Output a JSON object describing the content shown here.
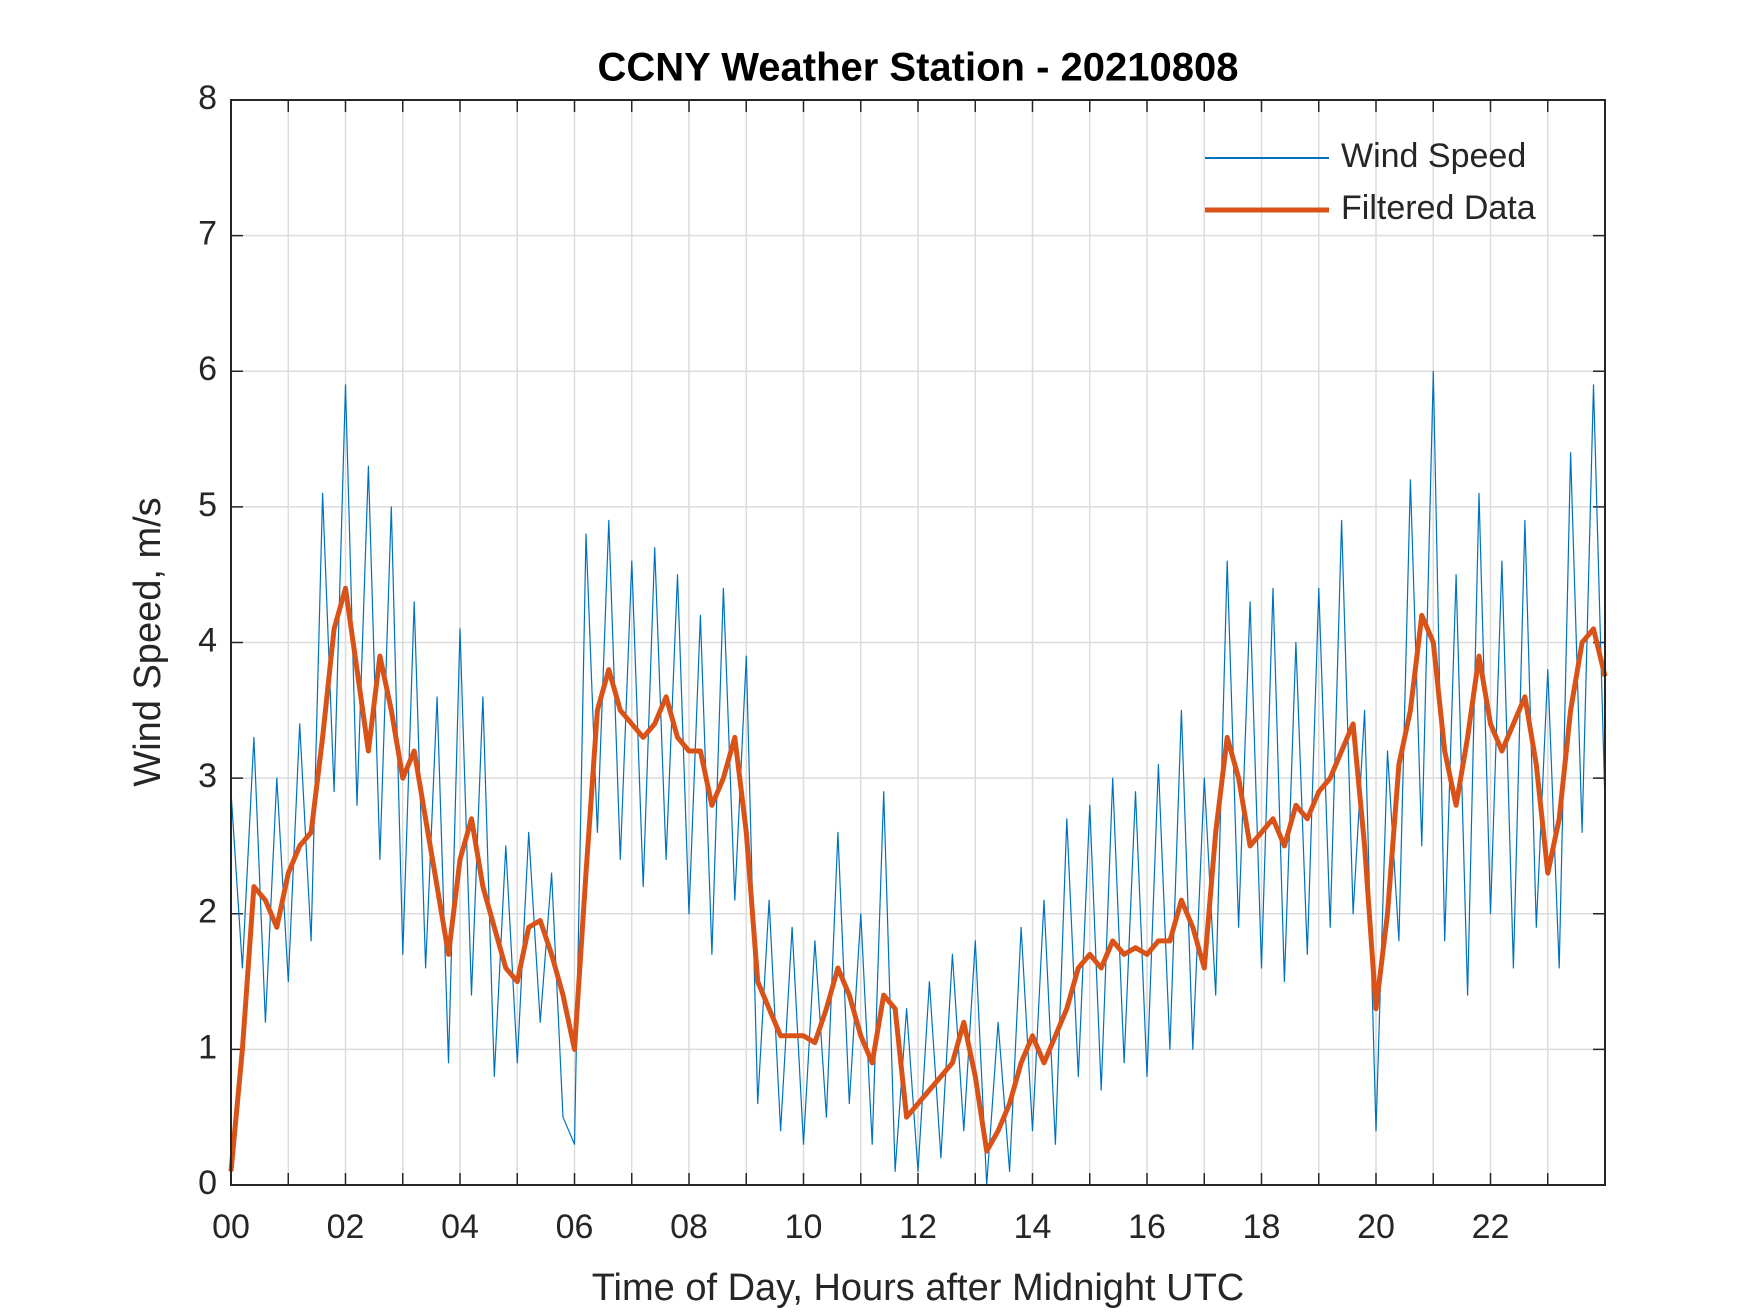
{
  "chart_data": {
    "type": "line",
    "title": "CCNY Weather Station - 20210808",
    "x_label": "Time of Day, Hours after Midnight UTC",
    "y_label": "Wind Speed, m/s",
    "xlim": [
      0,
      24
    ],
    "ylim": [
      0,
      8
    ],
    "xticks": [
      {
        "value": 0,
        "label": "00"
      },
      {
        "value": 2,
        "label": "02"
      },
      {
        "value": 4,
        "label": "04"
      },
      {
        "value": 6,
        "label": "06"
      },
      {
        "value": 8,
        "label": "08"
      },
      {
        "value": 10,
        "label": "10"
      },
      {
        "value": 12,
        "label": "12"
      },
      {
        "value": 14,
        "label": "14"
      },
      {
        "value": 16,
        "label": "16"
      },
      {
        "value": 18,
        "label": "18"
      },
      {
        "value": 20,
        "label": "20"
      },
      {
        "value": 22,
        "label": "22"
      }
    ],
    "x_minor_ticks": [
      1,
      3,
      5,
      7,
      9,
      11,
      13,
      15,
      17,
      19,
      21,
      23
    ],
    "yticks": [
      0,
      1,
      2,
      3,
      4,
      5,
      6,
      7,
      8
    ],
    "grid": true,
    "legend": "northeast",
    "x": [
      0,
      0.2,
      0.4,
      0.6,
      0.8,
      1,
      1.2,
      1.4,
      1.6,
      1.8,
      2,
      2.2,
      2.4,
      2.6,
      2.8,
      3,
      3.2,
      3.4,
      3.6,
      3.8,
      4,
      4.2,
      4.4,
      4.6,
      4.8,
      5,
      5.2,
      5.4,
      5.6,
      5.8,
      6,
      6.2,
      6.4,
      6.6,
      6.8,
      7,
      7.2,
      7.4,
      7.6,
      7.8,
      8,
      8.2,
      8.4,
      8.6,
      8.8,
      9,
      9.2,
      9.4,
      9.6,
      9.8,
      10,
      10.2,
      10.4,
      10.6,
      10.8,
      11,
      11.2,
      11.4,
      11.6,
      11.8,
      12,
      12.2,
      12.4,
      12.6,
      12.8,
      13,
      13.2,
      13.4,
      13.6,
      13.8,
      14,
      14.2,
      14.4,
      14.6,
      14.8,
      15,
      15.2,
      15.4,
      15.6,
      15.8,
      16,
      16.2,
      16.4,
      16.6,
      16.8,
      17,
      17.2,
      17.4,
      17.6,
      17.8,
      18,
      18.2,
      18.4,
      18.6,
      18.8,
      19,
      19.2,
      19.4,
      19.6,
      19.8,
      20,
      20.2,
      20.4,
      20.6,
      20.8,
      21,
      21.2,
      21.4,
      21.6,
      21.8,
      22,
      22.2,
      22.4,
      22.6,
      22.8,
      23,
      23.2,
      23.4,
      23.6,
      23.8,
      24
    ],
    "series": [
      {
        "name": "Wind Speed",
        "color": "#0072bd",
        "width": 1.2,
        "values": [
          2.9,
          1.6,
          3.3,
          1.2,
          3.0,
          1.5,
          3.4,
          1.8,
          5.1,
          2.9,
          5.9,
          2.8,
          5.3,
          2.4,
          5.0,
          1.7,
          4.3,
          1.6,
          3.6,
          0.9,
          4.1,
          1.4,
          3.6,
          0.8,
          2.5,
          0.9,
          2.6,
          1.2,
          2.3,
          0.5,
          0.3,
          4.8,
          2.6,
          4.9,
          2.4,
          4.6,
          2.2,
          4.7,
          2.4,
          4.5,
          2.0,
          4.2,
          1.7,
          4.4,
          2.1,
          3.9,
          0.6,
          2.1,
          0.4,
          1.9,
          0.3,
          1.8,
          0.5,
          2.6,
          0.6,
          2.0,
          0.3,
          2.9,
          0.1,
          1.3,
          0.1,
          1.5,
          0.2,
          1.7,
          0.4,
          1.8,
          0.0,
          1.2,
          0.1,
          1.9,
          0.4,
          2.1,
          0.3,
          2.7,
          0.8,
          2.8,
          0.7,
          3.0,
          0.9,
          2.9,
          0.8,
          3.1,
          1.0,
          3.5,
          1.0,
          3.0,
          1.4,
          4.6,
          1.9,
          4.3,
          1.6,
          4.4,
          1.5,
          4.0,
          1.7,
          4.4,
          1.9,
          4.9,
          2.0,
          3.5,
          0.4,
          3.2,
          1.8,
          5.2,
          2.5,
          6.0,
          1.8,
          4.5,
          1.4,
          5.1,
          2.0,
          4.6,
          1.6,
          4.9,
          1.9,
          3.8,
          1.6,
          5.4,
          2.6,
          5.9,
          2.8
        ]
      },
      {
        "name": "Filtered Data",
        "color": "#d95319",
        "width": 5,
        "values": [
          0.1,
          1.0,
          2.2,
          2.1,
          1.9,
          2.3,
          2.5,
          2.6,
          3.3,
          4.1,
          4.4,
          3.8,
          3.2,
          3.9,
          3.5,
          3.0,
          3.2,
          2.7,
          2.2,
          1.7,
          2.4,
          2.7,
          2.2,
          1.9,
          1.6,
          1.5,
          1.9,
          1.95,
          1.7,
          1.4,
          1.0,
          2.3,
          3.5,
          3.8,
          3.5,
          3.4,
          3.3,
          3.4,
          3.6,
          3.3,
          3.2,
          3.2,
          2.8,
          3.0,
          3.3,
          2.6,
          1.5,
          1.3,
          1.1,
          1.1,
          1.1,
          1.05,
          1.3,
          1.6,
          1.4,
          1.1,
          0.9,
          1.4,
          1.3,
          0.5,
          0.6,
          0.7,
          0.8,
          0.9,
          1.2,
          0.8,
          0.25,
          0.4,
          0.6,
          0.9,
          1.1,
          0.9,
          1.1,
          1.3,
          1.6,
          1.7,
          1.6,
          1.8,
          1.7,
          1.75,
          1.7,
          1.8,
          1.8,
          2.1,
          1.9,
          1.6,
          2.6,
          3.3,
          3.0,
          2.5,
          2.6,
          2.7,
          2.5,
          2.8,
          2.7,
          2.9,
          3.0,
          3.2,
          3.4,
          2.5,
          1.3,
          2.0,
          3.1,
          3.5,
          4.2,
          4.0,
          3.2,
          2.8,
          3.3,
          3.9,
          3.4,
          3.2,
          3.4,
          3.6,
          3.1,
          2.3,
          2.7,
          3.5,
          4.0,
          4.1,
          3.75
        ]
      }
    ]
  }
}
